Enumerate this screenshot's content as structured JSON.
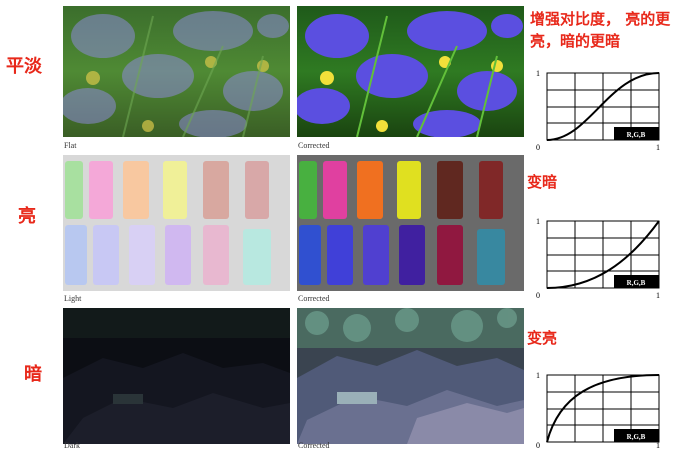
{
  "rows": [
    {
      "side_label": "平淡",
      "caption_left": "Flat",
      "caption_right": "Corrected",
      "note": "增强对比度， 亮的更亮，暗的更暗",
      "curve": {
        "type": "s-curve",
        "legend": "R,G,B",
        "x_min": "0",
        "x_max": "1",
        "y_max": "1"
      }
    },
    {
      "side_label": "亮",
      "caption_left": "Light",
      "caption_right": "Corrected",
      "note": "变暗",
      "curve": {
        "type": "gamma-darken",
        "legend": "R,G,B",
        "x_min": "0",
        "x_max": "1",
        "y_max": "1"
      }
    },
    {
      "side_label": "暗",
      "caption_left": "Dark",
      "caption_right": "Corrected",
      "note": "变亮",
      "curve": {
        "type": "gamma-brighten",
        "legend": "R,G,B",
        "x_min": "0",
        "x_max": "1",
        "y_max": "1"
      }
    }
  ],
  "colors": {
    "label_red": "#e8281a",
    "iris_petal": "#6a5fd8",
    "grass": "#3d8a2a"
  }
}
